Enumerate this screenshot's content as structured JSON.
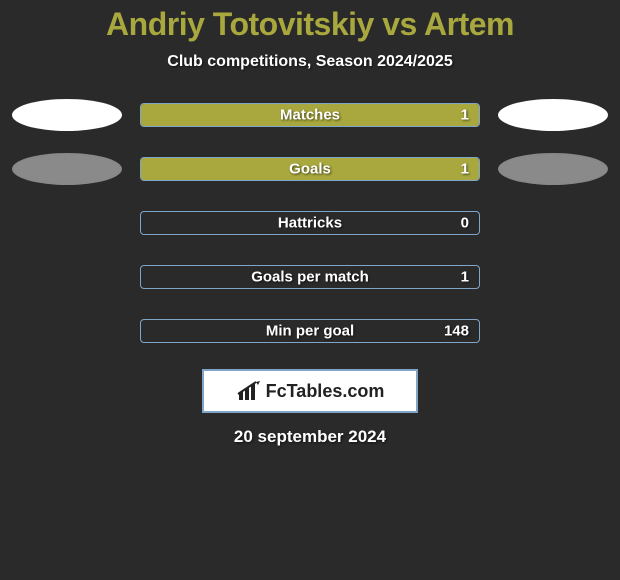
{
  "header": {
    "title": "Andriy Totovitskiy vs Artem",
    "subtitle": "Club competitions, Season 2024/2025"
  },
  "chart": {
    "type": "bar",
    "fill_color": "#a8a83e",
    "border_color": "#7fa5c9",
    "ellipse_white": "#ffffff",
    "ellipse_gray": "#8a8a8a",
    "rows": [
      {
        "label": "Matches",
        "value": "1",
        "fill_width_pct": 100,
        "left_ellipse": "white",
        "right_ellipse": "white"
      },
      {
        "label": "Goals",
        "value": "1",
        "fill_width_pct": 100,
        "left_ellipse": "gray",
        "right_ellipse": "gray"
      },
      {
        "label": "Hattricks",
        "value": "0",
        "fill_width_pct": 0,
        "left_ellipse": null,
        "right_ellipse": null
      },
      {
        "label": "Goals per match",
        "value": "1",
        "fill_width_pct": 0,
        "left_ellipse": null,
        "right_ellipse": null
      },
      {
        "label": "Min per goal",
        "value": "148",
        "fill_width_pct": 0,
        "left_ellipse": null,
        "right_ellipse": null
      }
    ]
  },
  "brand": {
    "label": "FcTables.com"
  },
  "footer": {
    "date": "20 september 2024"
  },
  "style": {
    "background_color": "#2a2a2a",
    "title_color": "#a8a83e",
    "text_color": "#ffffff"
  }
}
